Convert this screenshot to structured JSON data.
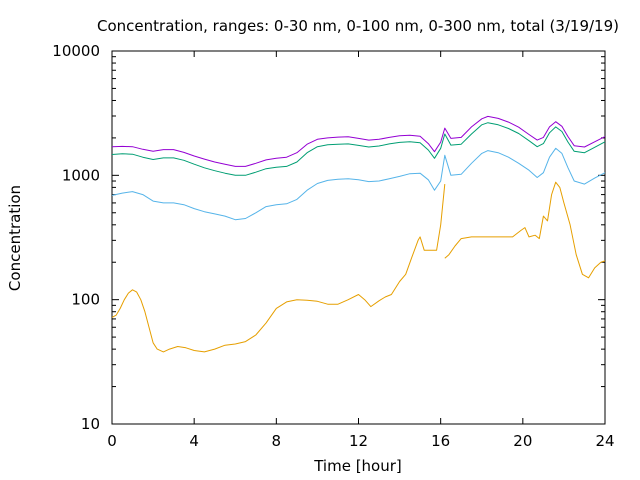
{
  "chart_data": {
    "type": "line",
    "title": "Concentration, ranges: 0-30 nm, 0-100 nm, 0-300 nm, total (3/19/19)",
    "xlabel": "Time [hour]",
    "ylabel": "Concentration",
    "xlim": [
      0,
      24
    ],
    "ylim": [
      10,
      10000
    ],
    "yscale": "log",
    "xticks": [
      0,
      4,
      8,
      12,
      16,
      20,
      24
    ],
    "xtick_labels": [
      "0",
      "4",
      "8",
      "12",
      "16",
      "20",
      "24"
    ],
    "yticks": [
      10,
      100,
      1000,
      10000
    ],
    "ytick_labels": [
      "10",
      "100",
      "1000",
      "10000"
    ],
    "grid": false,
    "legend": "none",
    "series": [
      {
        "color": "#e69f00",
        "points": [
          [
            0,
            72
          ],
          [
            0.2,
            75
          ],
          [
            0.4,
            85
          ],
          [
            0.6,
            100
          ],
          [
            0.8,
            113
          ],
          [
            1.0,
            120
          ],
          [
            1.2,
            115
          ],
          [
            1.4,
            100
          ],
          [
            1.6,
            80
          ],
          [
            1.8,
            60
          ],
          [
            2.0,
            45
          ],
          [
            2.2,
            40
          ],
          [
            2.5,
            38
          ],
          [
            2.8,
            40
          ],
          [
            3.2,
            42
          ],
          [
            3.6,
            41
          ],
          [
            4.0,
            39
          ],
          [
            4.5,
            38
          ],
          [
            5.0,
            40
          ],
          [
            5.5,
            43
          ],
          [
            6.0,
            44
          ],
          [
            6.5,
            46
          ],
          [
            7.0,
            52
          ],
          [
            7.5,
            65
          ],
          [
            8.0,
            85
          ],
          [
            8.5,
            96
          ],
          [
            9.0,
            100
          ],
          [
            9.5,
            99
          ],
          [
            10.0,
            97
          ],
          [
            10.5,
            92
          ],
          [
            11.0,
            92
          ],
          [
            11.5,
            100
          ],
          [
            12.0,
            110
          ],
          [
            12.3,
            100
          ],
          [
            12.6,
            88
          ],
          [
            13.0,
            98
          ],
          [
            13.3,
            105
          ],
          [
            13.6,
            110
          ],
          [
            14.0,
            140
          ],
          [
            14.3,
            160
          ],
          [
            14.6,
            220
          ],
          [
            14.9,
            300
          ],
          [
            15.0,
            320
          ],
          [
            15.2,
            250
          ],
          [
            15.5,
            250
          ],
          [
            15.8,
            250
          ],
          [
            16.0,
            400
          ],
          [
            16.2,
            850
          ],
          null,
          [
            16.2,
            215
          ],
          [
            16.4,
            230
          ],
          [
            16.7,
            270
          ],
          [
            17.0,
            310
          ],
          [
            17.5,
            320
          ],
          [
            18.0,
            320
          ],
          [
            18.5,
            320
          ],
          [
            19.0,
            320
          ],
          [
            19.5,
            320
          ],
          [
            19.9,
            360
          ],
          [
            20.1,
            380
          ],
          [
            20.3,
            320
          ],
          [
            20.6,
            330
          ],
          [
            20.8,
            310
          ],
          [
            21.0,
            470
          ],
          [
            21.2,
            430
          ],
          [
            21.4,
            700
          ],
          [
            21.6,
            880
          ],
          [
            21.8,
            800
          ],
          [
            22.0,
            600
          ],
          [
            22.3,
            400
          ],
          [
            22.6,
            230
          ],
          [
            22.9,
            160
          ],
          [
            23.2,
            150
          ],
          [
            23.5,
            180
          ],
          [
            23.8,
            200
          ],
          [
            24.0,
            205
          ]
        ]
      },
      {
        "color": "#56b4e9",
        "points": [
          [
            0,
            690
          ],
          [
            0.5,
            720
          ],
          [
            1.0,
            740
          ],
          [
            1.5,
            700
          ],
          [
            2.0,
            620
          ],
          [
            2.5,
            600
          ],
          [
            3.0,
            600
          ],
          [
            3.5,
            580
          ],
          [
            4.0,
            540
          ],
          [
            4.5,
            510
          ],
          [
            5.0,
            490
          ],
          [
            5.5,
            470
          ],
          [
            6.0,
            440
          ],
          [
            6.5,
            450
          ],
          [
            7.0,
            500
          ],
          [
            7.5,
            560
          ],
          [
            8.0,
            580
          ],
          [
            8.5,
            590
          ],
          [
            9.0,
            640
          ],
          [
            9.5,
            760
          ],
          [
            10.0,
            860
          ],
          [
            10.5,
            910
          ],
          [
            11.0,
            930
          ],
          [
            11.5,
            940
          ],
          [
            12.0,
            920
          ],
          [
            12.5,
            890
          ],
          [
            13.0,
            900
          ],
          [
            13.5,
            940
          ],
          [
            14.0,
            980
          ],
          [
            14.5,
            1030
          ],
          [
            15.0,
            1040
          ],
          [
            15.4,
            920
          ],
          [
            15.7,
            760
          ],
          [
            16.0,
            900
          ],
          [
            16.2,
            1450
          ],
          [
            16.5,
            1000
          ],
          [
            17.0,
            1020
          ],
          [
            17.5,
            1250
          ],
          [
            18.0,
            1500
          ],
          [
            18.3,
            1580
          ],
          [
            18.8,
            1520
          ],
          [
            19.3,
            1400
          ],
          [
            19.8,
            1250
          ],
          [
            20.3,
            1100
          ],
          [
            20.7,
            960
          ],
          [
            21.0,
            1050
          ],
          [
            21.3,
            1400
          ],
          [
            21.6,
            1650
          ],
          [
            21.9,
            1500
          ],
          [
            22.2,
            1150
          ],
          [
            22.5,
            900
          ],
          [
            23.0,
            850
          ],
          [
            23.5,
            950
          ],
          [
            24.0,
            1050
          ]
        ]
      },
      {
        "color": "#009e73",
        "points": [
          [
            0,
            1470
          ],
          [
            0.5,
            1490
          ],
          [
            1.0,
            1480
          ],
          [
            1.5,
            1400
          ],
          [
            2.0,
            1340
          ],
          [
            2.5,
            1380
          ],
          [
            3.0,
            1380
          ],
          [
            3.5,
            1320
          ],
          [
            4.0,
            1230
          ],
          [
            4.5,
            1150
          ],
          [
            5.0,
            1090
          ],
          [
            5.5,
            1040
          ],
          [
            6.0,
            1000
          ],
          [
            6.5,
            1000
          ],
          [
            7.0,
            1060
          ],
          [
            7.5,
            1130
          ],
          [
            8.0,
            1160
          ],
          [
            8.5,
            1180
          ],
          [
            9.0,
            1280
          ],
          [
            9.5,
            1520
          ],
          [
            10.0,
            1700
          ],
          [
            10.5,
            1760
          ],
          [
            11.0,
            1780
          ],
          [
            11.5,
            1790
          ],
          [
            12.0,
            1740
          ],
          [
            12.5,
            1690
          ],
          [
            13.0,
            1720
          ],
          [
            13.5,
            1790
          ],
          [
            14.0,
            1840
          ],
          [
            14.5,
            1860
          ],
          [
            15.0,
            1830
          ],
          [
            15.4,
            1600
          ],
          [
            15.7,
            1370
          ],
          [
            16.0,
            1650
          ],
          [
            16.2,
            2150
          ],
          [
            16.5,
            1750
          ],
          [
            17.0,
            1780
          ],
          [
            17.5,
            2150
          ],
          [
            18.0,
            2550
          ],
          [
            18.3,
            2650
          ],
          [
            18.8,
            2550
          ],
          [
            19.3,
            2380
          ],
          [
            19.8,
            2170
          ],
          [
            20.3,
            1900
          ],
          [
            20.7,
            1700
          ],
          [
            21.0,
            1800
          ],
          [
            21.3,
            2200
          ],
          [
            21.6,
            2450
          ],
          [
            21.9,
            2250
          ],
          [
            22.2,
            1850
          ],
          [
            22.5,
            1560
          ],
          [
            23.0,
            1520
          ],
          [
            23.5,
            1680
          ],
          [
            24.0,
            1860
          ]
        ]
      },
      {
        "color": "#9400d3",
        "points": [
          [
            0,
            1700
          ],
          [
            0.5,
            1710
          ],
          [
            1.0,
            1700
          ],
          [
            1.5,
            1620
          ],
          [
            2.0,
            1560
          ],
          [
            2.5,
            1610
          ],
          [
            3.0,
            1610
          ],
          [
            3.5,
            1530
          ],
          [
            4.0,
            1430
          ],
          [
            4.5,
            1350
          ],
          [
            5.0,
            1280
          ],
          [
            5.5,
            1230
          ],
          [
            6.0,
            1180
          ],
          [
            6.5,
            1180
          ],
          [
            7.0,
            1250
          ],
          [
            7.5,
            1330
          ],
          [
            8.0,
            1370
          ],
          [
            8.5,
            1400
          ],
          [
            9.0,
            1520
          ],
          [
            9.5,
            1780
          ],
          [
            10.0,
            1950
          ],
          [
            10.5,
            2000
          ],
          [
            11.0,
            2030
          ],
          [
            11.5,
            2040
          ],
          [
            12.0,
            1980
          ],
          [
            12.5,
            1920
          ],
          [
            13.0,
            1950
          ],
          [
            13.5,
            2020
          ],
          [
            14.0,
            2080
          ],
          [
            14.5,
            2100
          ],
          [
            15.0,
            2060
          ],
          [
            15.4,
            1800
          ],
          [
            15.7,
            1550
          ],
          [
            16.0,
            1850
          ],
          [
            16.2,
            2400
          ],
          [
            16.5,
            1980
          ],
          [
            17.0,
            2020
          ],
          [
            17.5,
            2450
          ],
          [
            18.0,
            2850
          ],
          [
            18.3,
            2980
          ],
          [
            18.8,
            2870
          ],
          [
            19.3,
            2680
          ],
          [
            19.8,
            2440
          ],
          [
            20.3,
            2130
          ],
          [
            20.7,
            1920
          ],
          [
            21.0,
            2020
          ],
          [
            21.3,
            2450
          ],
          [
            21.6,
            2700
          ],
          [
            21.9,
            2480
          ],
          [
            22.2,
            2050
          ],
          [
            22.5,
            1730
          ],
          [
            23.0,
            1690
          ],
          [
            23.5,
            1860
          ],
          [
            24.0,
            2050
          ]
        ]
      }
    ]
  }
}
